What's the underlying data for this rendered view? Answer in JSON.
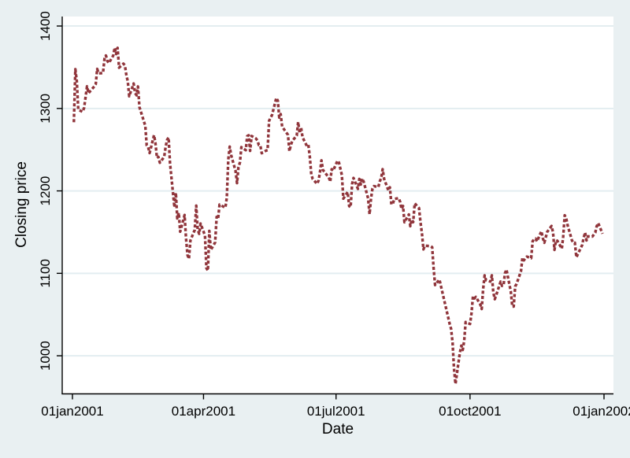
{
  "figure": {
    "background_color": "#e9f0f2",
    "plot_background_color": "#ffffff",
    "grid_color": "#e3edf0",
    "axis_color": "#000000",
    "text_color": "#000000"
  },
  "chart_data": {
    "type": "line",
    "title": "",
    "xlabel": "Date",
    "ylabel": "Closing price",
    "legend": "none",
    "grid": "horizontal",
    "ylim": [
      954,
      1422
    ],
    "y_ticks": [
      1000,
      1100,
      1200,
      1300,
      1400
    ],
    "y_tick_labels": [
      "1000",
      "1100",
      "1200",
      "1300",
      "1400"
    ],
    "x_tick_labels": [
      "01jan2001",
      "01apr2001",
      "01jul2001",
      "01oct2001",
      "01jan2002"
    ],
    "x_tick_days": [
      0,
      90,
      181,
      273,
      365
    ],
    "series": [
      {
        "name": "Closing price",
        "color": "#90353B",
        "line_style": "dashed",
        "marker": "none",
        "year": 2001,
        "points": [
          [
            "01-02",
            1283.27
          ],
          [
            "01-03",
            1347.56
          ],
          [
            "01-04",
            1333.34
          ],
          [
            "01-05",
            1298.35
          ],
          [
            "01-08",
            1295.86
          ],
          [
            "01-09",
            1300.8
          ],
          [
            "01-10",
            1313.27
          ],
          [
            "01-11",
            1326.82
          ],
          [
            "01-12",
            1318.55
          ],
          [
            "01-16",
            1326.65
          ],
          [
            "01-17",
            1329.47
          ],
          [
            "01-18",
            1347.97
          ],
          [
            "01-19",
            1342.54
          ],
          [
            "01-22",
            1342.9
          ],
          [
            "01-23",
            1360.4
          ],
          [
            "01-24",
            1364.3
          ],
          [
            "01-25",
            1357.51
          ],
          [
            "01-26",
            1354.95
          ],
          [
            "01-29",
            1364.17
          ],
          [
            "01-30",
            1373.73
          ],
          [
            "01-31",
            1366.01
          ],
          [
            "02-01",
            1373.47
          ],
          [
            "02-02",
            1349.47
          ],
          [
            "02-05",
            1354.31
          ],
          [
            "02-06",
            1352.26
          ],
          [
            "02-07",
            1340.89
          ],
          [
            "02-08",
            1332.53
          ],
          [
            "02-09",
            1314.76
          ],
          [
            "02-12",
            1330.31
          ],
          [
            "02-13",
            1318.8
          ],
          [
            "02-14",
            1315.92
          ],
          [
            "02-15",
            1326.61
          ],
          [
            "02-16",
            1301.53
          ],
          [
            "02-20",
            1278.94
          ],
          [
            "02-21",
            1255.27
          ],
          [
            "02-22",
            1252.82
          ],
          [
            "02-23",
            1245.86
          ],
          [
            "02-26",
            1267.65
          ],
          [
            "02-27",
            1257.94
          ],
          [
            "02-28",
            1239.94
          ],
          [
            "03-01",
            1241.23
          ],
          [
            "03-02",
            1234.18
          ],
          [
            "03-05",
            1241.41
          ],
          [
            "03-06",
            1253.8
          ],
          [
            "03-07",
            1261.89
          ],
          [
            "03-08",
            1264.74
          ],
          [
            "03-09",
            1233.42
          ],
          [
            "03-12",
            1180.16
          ],
          [
            "03-13",
            1197.66
          ],
          [
            "03-14",
            1166.71
          ],
          [
            "03-15",
            1173.56
          ],
          [
            "03-16",
            1150.53
          ],
          [
            "03-19",
            1170.81
          ],
          [
            "03-20",
            1142.62
          ],
          [
            "03-21",
            1122.14
          ],
          [
            "03-22",
            1117.58
          ],
          [
            "03-23",
            1139.83
          ],
          [
            "03-26",
            1152.69
          ],
          [
            "03-27",
            1182.17
          ],
          [
            "03-28",
            1153.29
          ],
          [
            "03-29",
            1147.95
          ],
          [
            "03-30",
            1160.33
          ],
          [
            "04-02",
            1145.87
          ],
          [
            "04-03",
            1106.46
          ],
          [
            "04-04",
            1103.25
          ],
          [
            "04-05",
            1151.44
          ],
          [
            "04-06",
            1128.43
          ],
          [
            "04-09",
            1137.59
          ],
          [
            "04-10",
            1168.38
          ],
          [
            "04-11",
            1165.89
          ],
          [
            "04-12",
            1183.5
          ],
          [
            "04-16",
            1179.68
          ],
          [
            "04-17",
            1191.81
          ],
          [
            "04-18",
            1238.16
          ],
          [
            "04-19",
            1253.69
          ],
          [
            "04-20",
            1242.98
          ],
          [
            "04-23",
            1224.36
          ],
          [
            "04-24",
            1209.47
          ],
          [
            "04-25",
            1228.75
          ],
          [
            "04-26",
            1234.52
          ],
          [
            "04-27",
            1253.05
          ],
          [
            "04-30",
            1249.46
          ],
          [
            "05-01",
            1266.44
          ],
          [
            "05-02",
            1267.43
          ],
          [
            "05-03",
            1248.58
          ],
          [
            "05-04",
            1266.61
          ],
          [
            "05-07",
            1263.51
          ],
          [
            "05-08",
            1261.2
          ],
          [
            "05-09",
            1255.54
          ],
          [
            "05-10",
            1255.18
          ],
          [
            "05-11",
            1245.67
          ],
          [
            "05-14",
            1248.92
          ],
          [
            "05-15",
            1249.44
          ],
          [
            "05-16",
            1284.99
          ],
          [
            "05-17",
            1288.49
          ],
          [
            "05-18",
            1291.96
          ],
          [
            "05-21",
            1312.83
          ],
          [
            "05-22",
            1309.38
          ],
          [
            "05-23",
            1289.05
          ],
          [
            "05-24",
            1293.17
          ],
          [
            "05-25",
            1277.89
          ],
          [
            "05-29",
            1267.93
          ],
          [
            "05-30",
            1248.08
          ],
          [
            "05-31",
            1255.82
          ],
          [
            "06-01",
            1260.67
          ],
          [
            "06-04",
            1267.11
          ],
          [
            "06-05",
            1283.57
          ],
          [
            "06-06",
            1270.03
          ],
          [
            "06-07",
            1276.96
          ],
          [
            "06-08",
            1264.96
          ],
          [
            "06-11",
            1254.39
          ],
          [
            "06-12",
            1255.85
          ],
          [
            "06-13",
            1241.6
          ],
          [
            "06-14",
            1219.87
          ],
          [
            "06-15",
            1214.36
          ],
          [
            "06-18",
            1208.43
          ],
          [
            "06-19",
            1212.58
          ],
          [
            "06-20",
            1223.14
          ],
          [
            "06-21",
            1237.04
          ],
          [
            "06-22",
            1225.35
          ],
          [
            "06-25",
            1218.6
          ],
          [
            "06-26",
            1216.76
          ],
          [
            "06-27",
            1211.07
          ],
          [
            "06-28",
            1226.2
          ],
          [
            "06-29",
            1224.42
          ],
          [
            "07-02",
            1236.72
          ],
          [
            "07-03",
            1234.45
          ],
          [
            "07-05",
            1219.24
          ],
          [
            "07-06",
            1190.59
          ],
          [
            "07-09",
            1198.78
          ],
          [
            "07-10",
            1181.52
          ],
          [
            "07-11",
            1180.18
          ],
          [
            "07-12",
            1208.14
          ],
          [
            "07-13",
            1215.68
          ],
          [
            "07-16",
            1202.45
          ],
          [
            "07-17",
            1214.44
          ],
          [
            "07-18",
            1207.71
          ],
          [
            "07-19",
            1215.02
          ],
          [
            "07-20",
            1210.85
          ],
          [
            "07-23",
            1191.03
          ],
          [
            "07-24",
            1171.65
          ],
          [
            "07-25",
            1190.49
          ],
          [
            "07-26",
            1202.93
          ],
          [
            "07-27",
            1205.82
          ],
          [
            "07-30",
            1204.52
          ],
          [
            "07-31",
            1211.23
          ],
          [
            "08-01",
            1215.93
          ],
          [
            "08-02",
            1226.33
          ],
          [
            "08-03",
            1214.35
          ],
          [
            "08-06",
            1200.48
          ],
          [
            "08-07",
            1204.4
          ],
          [
            "08-08",
            1183.53
          ],
          [
            "08-09",
            1184.26
          ],
          [
            "08-10",
            1190.16
          ],
          [
            "08-13",
            1191.29
          ],
          [
            "08-14",
            1186.73
          ],
          [
            "08-15",
            1178.02
          ],
          [
            "08-16",
            1181.66
          ],
          [
            "08-17",
            1161.97
          ],
          [
            "08-20",
            1171.41
          ],
          [
            "08-21",
            1157.26
          ],
          [
            "08-22",
            1165.31
          ],
          [
            "08-23",
            1162.09
          ],
          [
            "08-24",
            1184.93
          ],
          [
            "08-27",
            1179.21
          ],
          [
            "08-28",
            1161.51
          ],
          [
            "08-29",
            1148.56
          ],
          [
            "08-30",
            1129.03
          ],
          [
            "08-31",
            1133.58
          ],
          [
            "09-04",
            1132.94
          ],
          [
            "09-05",
            1131.74
          ],
          [
            "09-06",
            1106.4
          ],
          [
            "09-07",
            1085.78
          ],
          [
            "09-10",
            1092.54
          ],
          [
            "09-17",
            1038.77
          ],
          [
            "09-18",
            1032.74
          ],
          [
            "09-19",
            1016.1
          ],
          [
            "09-20",
            984.54
          ],
          [
            "09-21",
            965.8
          ],
          [
            "09-24",
            1003.45
          ],
          [
            "09-25",
            1012.27
          ],
          [
            "09-26",
            1007.04
          ],
          [
            "09-27",
            1018.61
          ],
          [
            "09-28",
            1040.94
          ],
          [
            "10-01",
            1038.55
          ],
          [
            "10-02",
            1051.33
          ],
          [
            "10-03",
            1072.28
          ],
          [
            "10-04",
            1069.63
          ],
          [
            "10-05",
            1071.38
          ],
          [
            "10-08",
            1062.44
          ],
          [
            "10-09",
            1056.75
          ],
          [
            "10-10",
            1080.99
          ],
          [
            "10-11",
            1097.43
          ],
          [
            "10-12",
            1091.65
          ],
          [
            "10-15",
            1089.98
          ],
          [
            "10-16",
            1097.54
          ],
          [
            "10-17",
            1077.09
          ],
          [
            "10-18",
            1068.61
          ],
          [
            "10-19",
            1073.48
          ],
          [
            "10-22",
            1089.9
          ],
          [
            "10-23",
            1084.78
          ],
          [
            "10-24",
            1085.2
          ],
          [
            "10-25",
            1100.09
          ],
          [
            "10-26",
            1104.61
          ],
          [
            "10-29",
            1078.3
          ],
          [
            "10-30",
            1059.79
          ],
          [
            "10-31",
            1059.78
          ],
          [
            "11-01",
            1084.1
          ],
          [
            "11-02",
            1087.2
          ],
          [
            "11-05",
            1102.84
          ],
          [
            "11-06",
            1118.86
          ],
          [
            "11-07",
            1115.8
          ],
          [
            "11-08",
            1118.54
          ],
          [
            "11-09",
            1120.31
          ],
          [
            "11-12",
            1118.33
          ],
          [
            "11-13",
            1139.09
          ],
          [
            "11-14",
            1141.21
          ],
          [
            "11-15",
            1142.24
          ],
          [
            "11-16",
            1138.65
          ],
          [
            "11-19",
            1151.06
          ],
          [
            "11-20",
            1142.66
          ],
          [
            "11-21",
            1137.03
          ],
          [
            "11-23",
            1150.34
          ],
          [
            "11-26",
            1157.42
          ],
          [
            "11-27",
            1149.5
          ],
          [
            "11-28",
            1128.52
          ],
          [
            "11-29",
            1140.2
          ],
          [
            "11-30",
            1139.45
          ],
          [
            "12-03",
            1129.9
          ],
          [
            "12-04",
            1144.8
          ],
          [
            "12-05",
            1170.35
          ],
          [
            "12-06",
            1167.1
          ],
          [
            "12-07",
            1158.31
          ],
          [
            "12-10",
            1139.93
          ],
          [
            "12-11",
            1136.76
          ],
          [
            "12-12",
            1137.07
          ],
          [
            "12-13",
            1119.38
          ],
          [
            "12-14",
            1123.09
          ],
          [
            "12-17",
            1134.36
          ],
          [
            "12-18",
            1142.92
          ],
          [
            "12-19",
            1149.56
          ],
          [
            "12-20",
            1139.93
          ],
          [
            "12-21",
            1144.89
          ],
          [
            "12-24",
            1144.65
          ],
          [
            "12-26",
            1149.37
          ],
          [
            "12-27",
            1157.13
          ],
          [
            "12-28",
            1161.02
          ],
          [
            "12-31",
            1148.08
          ]
        ]
      }
    ]
  }
}
